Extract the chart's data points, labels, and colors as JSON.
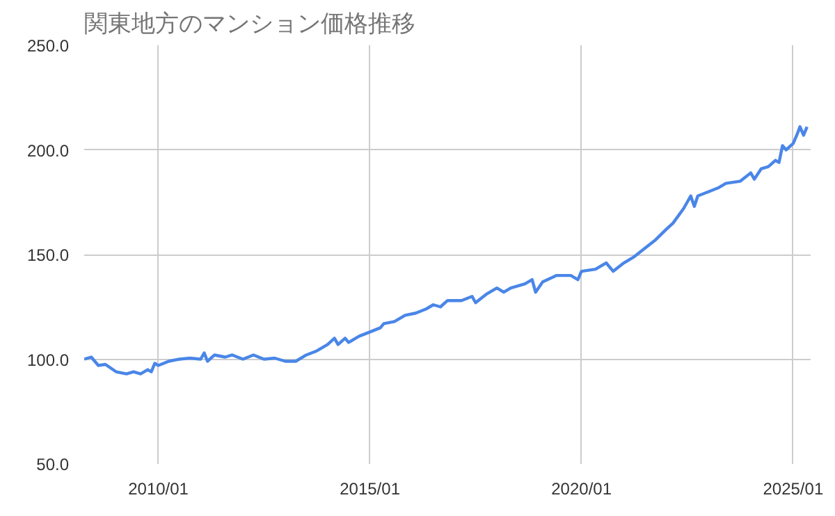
{
  "chart_data": {
    "type": "line",
    "title": "関東地方のマンション価格推移",
    "x": [
      "2008-04",
      "2008-06",
      "2008-08",
      "2008-10",
      "2009-01",
      "2009-04",
      "2009-06",
      "2009-08",
      "2009-10",
      "2009-11",
      "2009-12",
      "2010-01",
      "2010-04",
      "2010-07",
      "2010-10",
      "2011-01",
      "2011-02",
      "2011-03",
      "2011-05",
      "2011-08",
      "2011-10",
      "2012-01",
      "2012-04",
      "2012-07",
      "2012-10",
      "2013-01",
      "2013-04",
      "2013-07",
      "2013-10",
      "2014-01",
      "2014-03",
      "2014-04",
      "2014-06",
      "2014-07",
      "2014-10",
      "2015-01",
      "2015-04",
      "2015-05",
      "2015-08",
      "2015-11",
      "2016-02",
      "2016-05",
      "2016-07",
      "2016-09",
      "2016-11",
      "2017-03",
      "2017-06",
      "2017-07",
      "2017-10",
      "2018-01",
      "2018-03",
      "2018-05",
      "2018-09",
      "2018-11",
      "2018-12",
      "2019-02",
      "2019-06",
      "2019-10",
      "2019-12",
      "2020-01",
      "2020-05",
      "2020-08",
      "2020-10",
      "2021-01",
      "2021-04",
      "2021-07",
      "2021-10",
      "2022-01",
      "2022-03",
      "2022-06",
      "2022-08",
      "2022-09",
      "2022-10",
      "2023-01",
      "2023-04",
      "2023-06",
      "2023-10",
      "2024-01",
      "2024-02",
      "2024-04",
      "2024-06",
      "2024-08",
      "2024-09",
      "2024-10",
      "2024-11",
      "2025-01",
      "2025-02",
      "2025-03",
      "2025-04",
      "2025-05"
    ],
    "series": [
      {
        "color": "#4a86e8",
        "values": [
          100,
          101,
          97,
          97.5,
          94,
          93,
          94,
          93,
          95,
          94,
          98,
          97,
          99,
          100,
          100.5,
          100,
          103,
          99,
          102,
          101,
          102,
          100,
          102,
          100,
          100.5,
          99,
          99,
          102,
          104,
          107,
          110,
          107,
          110,
          108,
          111,
          113,
          115,
          117,
          118,
          121,
          122,
          124,
          126,
          125,
          128,
          128,
          130,
          127,
          131,
          134,
          132,
          134,
          136,
          138,
          132,
          137,
          140,
          140,
          138,
          142,
          143,
          146,
          142,
          146,
          149,
          153,
          157,
          162,
          165,
          172,
          178,
          173,
          178,
          180,
          182,
          184,
          185,
          189,
          186,
          191,
          192,
          195,
          194,
          202,
          200,
          203,
          207,
          211,
          207,
          211
        ]
      }
    ],
    "xlim": [
      "2008-04",
      "2025-06"
    ],
    "xticks": [
      {
        "value": "2010-01",
        "label": "2010/01"
      },
      {
        "value": "2015-01",
        "label": "2015/01"
      },
      {
        "value": "2020-01",
        "label": "2020/01"
      },
      {
        "value": "2025-01",
        "label": "2025/01"
      }
    ],
    "ylim": [
      50,
      250
    ],
    "yticks": [
      {
        "value": 50,
        "label": "50.0"
      },
      {
        "value": 100,
        "label": "100.0"
      },
      {
        "value": 150,
        "label": "150.0"
      },
      {
        "value": 200,
        "label": "200.0"
      },
      {
        "value": 250,
        "label": "250.0"
      }
    ],
    "grid": true,
    "marker": "none",
    "line_style": "solid"
  }
}
